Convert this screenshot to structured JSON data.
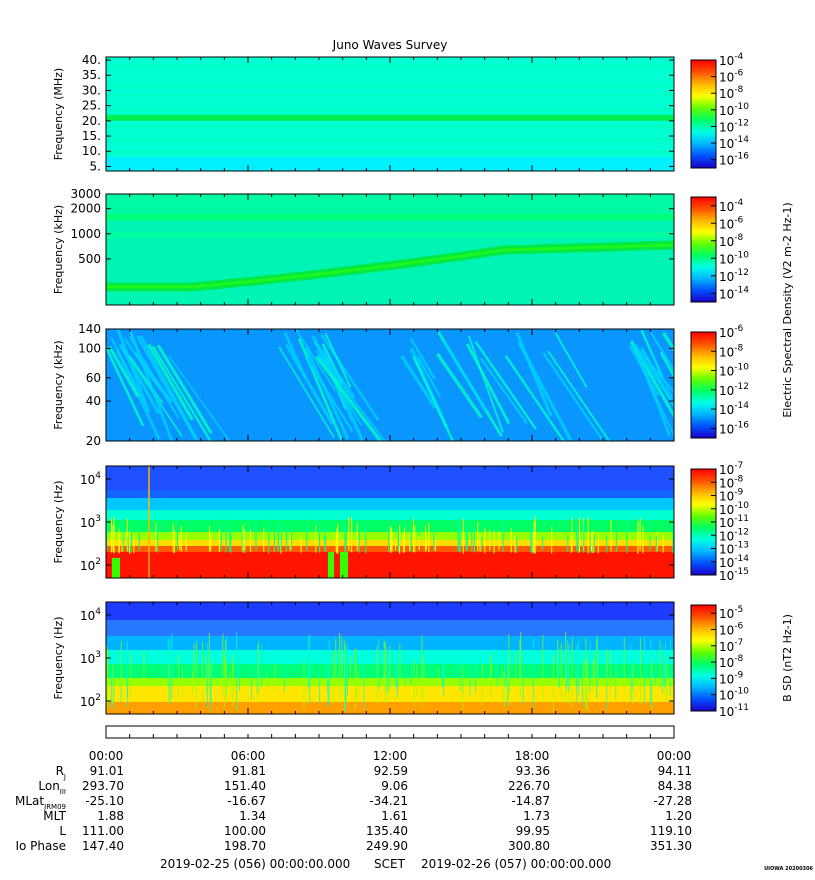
{
  "title": "Juno Waves Survey",
  "stamp": "UIOWA 20200306",
  "colorbar_label_e": "Electric Spectral Density (V2 m-2 Hz-1)",
  "colorbar_label_b": "B SD (nT2 Hz-1)",
  "scet_left": "2019-02-25 (056) 00:00:00.000",
  "scet_mid": "SCET",
  "scet_right": "2019-02-26 (057) 00:00:00.000",
  "time_ticks": [
    "00:00",
    "06:00",
    "12:00",
    "18:00",
    "00:00"
  ],
  "ephemeris": {
    "rows": [
      {
        "label": "R",
        "sub": "J",
        "values": [
          "91.01",
          "91.81",
          "92.59",
          "93.36",
          "94.11"
        ]
      },
      {
        "label": "Lon",
        "sub": "III",
        "values": [
          "293.70",
          "151.40",
          "9.06",
          "226.70",
          "84.38"
        ]
      },
      {
        "label": "MLat",
        "sub": "JRM09",
        "values": [
          "-25.10",
          "-16.67",
          "-34.21",
          "-14.87",
          "-27.28"
        ]
      },
      {
        "label": "MLT",
        "sub": "",
        "values": [
          "1.88",
          "1.34",
          "1.61",
          "1.73",
          "1.20"
        ]
      },
      {
        "label": "L",
        "sub": "",
        "values": [
          "111.00",
          "100.00",
          "135.40",
          "99.95",
          "119.10"
        ]
      },
      {
        "label": "Io Phase",
        "sub": "",
        "values": [
          "147.40",
          "198.70",
          "249.90",
          "300.80",
          "351.30"
        ]
      }
    ]
  },
  "colors": {
    "scale": [
      "#1e00c8",
      "#0050ff",
      "#00b4ff",
      "#00ffe6",
      "#00ff64",
      "#64ff00",
      "#ffff00",
      "#ffb400",
      "#ff5000",
      "#ff0000"
    ]
  },
  "chart_data": [
    {
      "type": "heatmap",
      "ylabel": "Frequency (MHz)",
      "yscale": "linear",
      "ylim": [
        3.5,
        41
      ],
      "yticks": [
        "5.",
        "10.",
        "15.",
        "20.",
        "25.",
        "30.",
        "35.",
        "40."
      ],
      "ytick_values": [
        5,
        10,
        15,
        20,
        25,
        30,
        35,
        40
      ],
      "colorbar_ticks": [
        "-4",
        "-6",
        "-8",
        "-10",
        "-12",
        "-14",
        "-16"
      ],
      "colorbar_range": [
        -17,
        -4
      ]
    },
    {
      "type": "heatmap",
      "ylabel": "Frequency (kHz)",
      "yscale": "log",
      "ylim": [
        140,
        3000
      ],
      "yticks": [
        "3000",
        "2000",
        "1000",
        "500"
      ],
      "ytick_values": [
        3000,
        2000,
        1000,
        500
      ],
      "colorbar_ticks": [
        "-4",
        "-6",
        "-8",
        "-10",
        "-12",
        "-14"
      ],
      "colorbar_range": [
        -15,
        -3
      ]
    },
    {
      "type": "heatmap",
      "ylabel": "Frequency (kHz)",
      "yscale": "log",
      "ylim": [
        20,
        140
      ],
      "yticks": [
        "140",
        "100",
        "60",
        "40",
        "20"
      ],
      "ytick_values": [
        140,
        100,
        60,
        40,
        20
      ],
      "colorbar_ticks": [
        "-6",
        "-8",
        "-10",
        "-12",
        "-14",
        "-16"
      ],
      "colorbar_range": [
        -17,
        -6
      ]
    },
    {
      "type": "heatmap",
      "ylabel": "Frequency (Hz)",
      "yscale": "log",
      "ylim": [
        50,
        20000
      ],
      "yticks": [
        "4",
        "3",
        "2"
      ],
      "ytick_values": [
        10000,
        1000,
        100
      ],
      "colorbar_ticks": [
        "-7",
        "-8",
        "-9",
        "-10",
        "-11",
        "-12",
        "-13",
        "-14",
        "-15"
      ],
      "colorbar_range": [
        -15,
        -7
      ]
    },
    {
      "type": "heatmap",
      "ylabel": "Frequency (Hz)",
      "yscale": "log",
      "ylim": [
        50,
        20000
      ],
      "yticks": [
        "4",
        "3",
        "2"
      ],
      "ytick_values": [
        10000,
        1000,
        100
      ],
      "colorbar_ticks": [
        "-5",
        "-6",
        "-7",
        "-8",
        "-9",
        "-10",
        "-11"
      ],
      "colorbar_range": [
        -11,
        -4.5
      ]
    }
  ]
}
